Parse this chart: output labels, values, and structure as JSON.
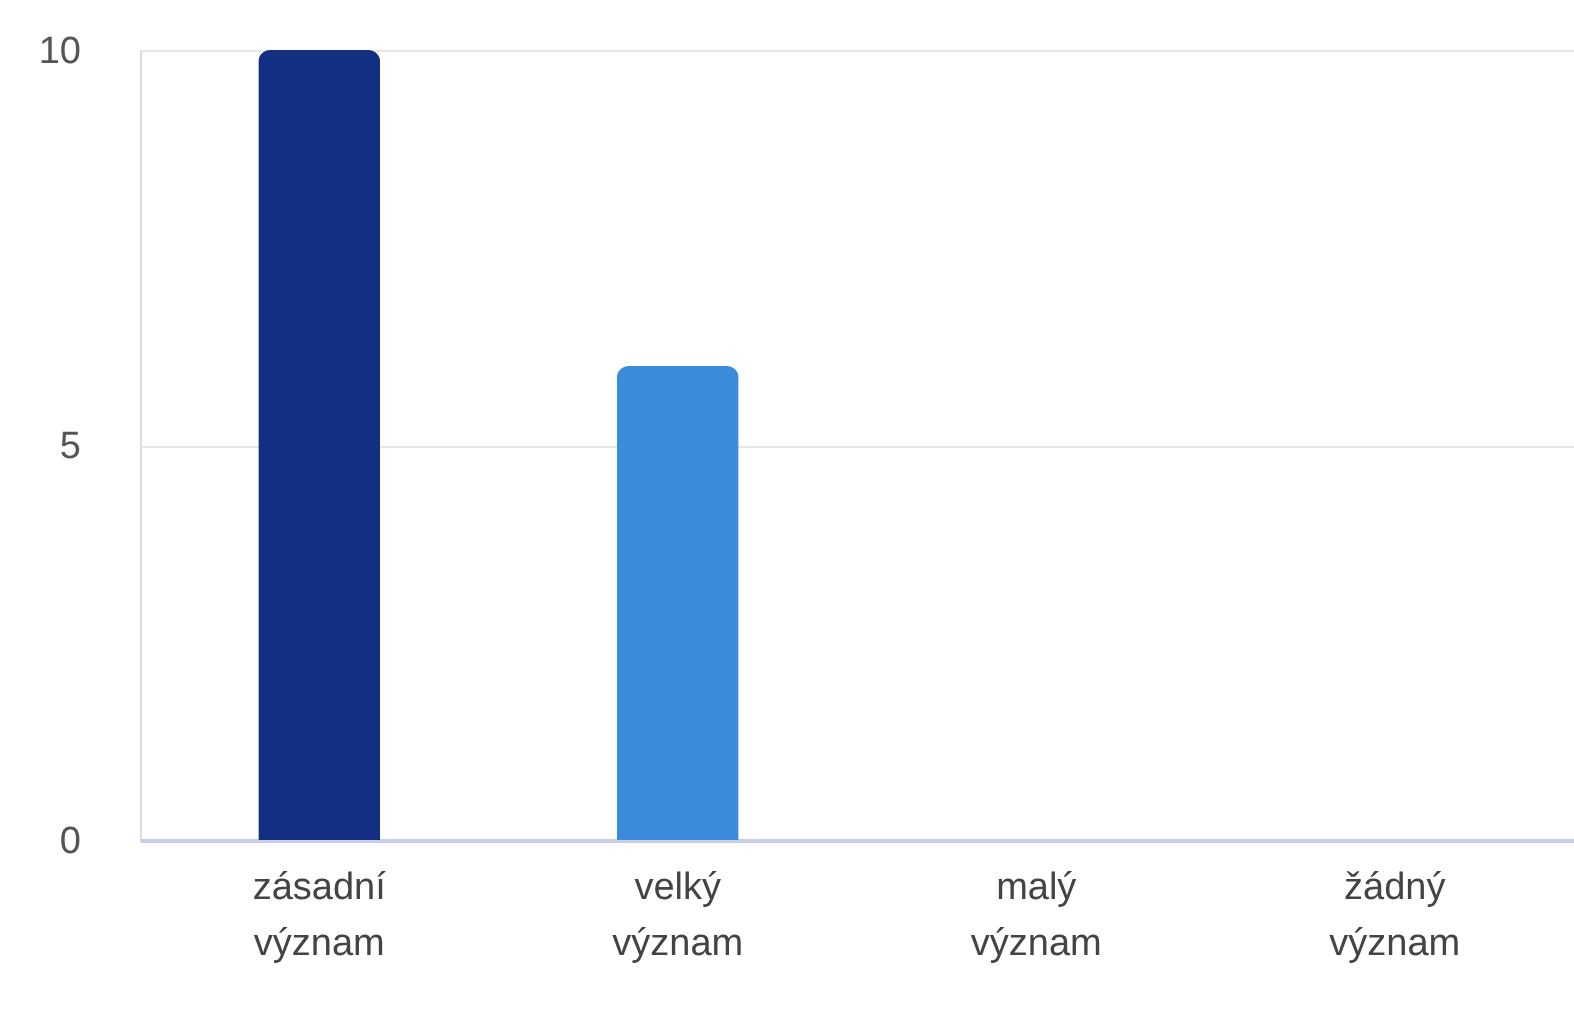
{
  "chart_data": {
    "type": "bar",
    "categories": [
      "zásadní význam",
      "velký význam",
      "malý význam",
      "žádný význam"
    ],
    "values": [
      10,
      6,
      0,
      0
    ],
    "colors": [
      "#132f81",
      "#3a8bd9",
      "#8fc0ee",
      "#c9d3e0"
    ],
    "ylim": [
      0,
      10
    ],
    "yticks": [
      0,
      5,
      10
    ],
    "grid": "y"
  }
}
